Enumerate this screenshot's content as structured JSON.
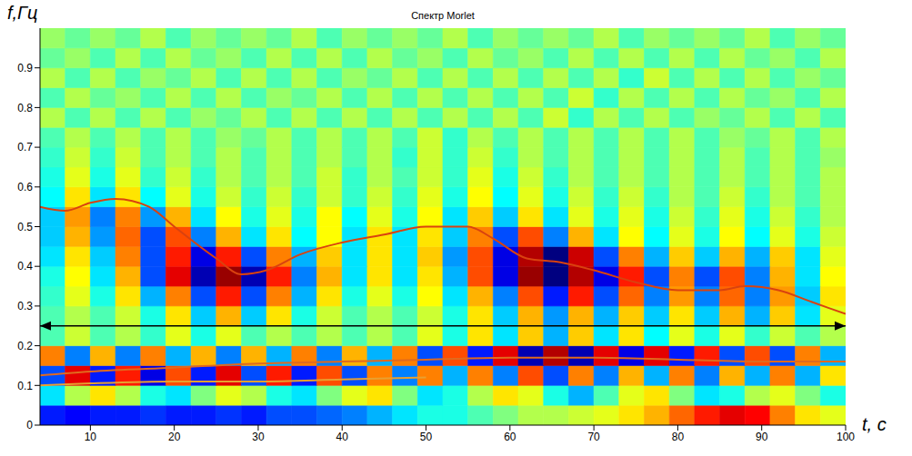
{
  "chart_data": {
    "type": "heatmap",
    "title": "Спектр Morlet",
    "x_label": "t, с",
    "y_label": "f,Гц",
    "xlim": [
      4,
      100
    ],
    "xticks": [
      10,
      20,
      30,
      40,
      50,
      60,
      70,
      80,
      90,
      100
    ],
    "ylim": [
      0,
      1
    ],
    "yticks": [
      0,
      0.1,
      0.2,
      0.3,
      0.4,
      0.5,
      0.6,
      0.7,
      0.8,
      0.9
    ],
    "grid": false,
    "heatmap": {
      "x": [
        5.5,
        8.5,
        11.5,
        14.5,
        17.5,
        20.5,
        23.5,
        26.5,
        29.5,
        32.5,
        35.5,
        38.5,
        41.5,
        44.5,
        47.5,
        50.5,
        53.5,
        56.5,
        59.5,
        62.5,
        65.5,
        68.5,
        71.5,
        74.5,
        77.5,
        80.5,
        83.5,
        86.5,
        89.5,
        92.5,
        95.5,
        98.5
      ],
      "y": [
        0.025,
        0.075,
        0.125,
        0.175,
        0.225,
        0.275,
        0.325,
        0.375,
        0.425,
        0.475,
        0.525,
        0.575,
        0.625,
        0.675,
        0.725,
        0.775,
        0.825,
        0.875,
        0.925,
        0.975
      ],
      "color_range": [
        -1,
        1
      ],
      "values": [
        [
          -0.7,
          -0.75,
          -0.7,
          -0.7,
          -0.65,
          -0.7,
          -0.7,
          -0.65,
          -0.7,
          -0.6,
          -0.6,
          -0.55,
          -0.5,
          -0.4,
          -0.3,
          -0.2,
          -0.2,
          -0.1,
          0,
          0.1,
          0.1,
          0.15,
          0.2,
          0.3,
          0.4,
          0.55,
          0.7,
          0.8,
          0.75,
          0.5,
          0.3,
          0.2
        ],
        [
          -0.3,
          0.1,
          0.3,
          0.1,
          -0.2,
          -0.3,
          0,
          0.2,
          0.1,
          -0.2,
          -0.3,
          0,
          0.2,
          0.3,
          0,
          -0.3,
          -0.2,
          0.1,
          0.3,
          0.2,
          -0.2,
          -0.4,
          -0.1,
          0.2,
          0.3,
          0,
          -0.3,
          -0.2,
          0.1,
          0.2,
          0,
          -0.2
        ],
        [
          -0.6,
          0.8,
          -0.7,
          0.7,
          -0.8,
          0.6,
          -0.7,
          0.8,
          -0.6,
          0.7,
          -0.7,
          0.6,
          -0.6,
          0.5,
          -0.5,
          0.5,
          -0.4,
          0.5,
          -0.5,
          0.6,
          -0.6,
          0.5,
          -0.5,
          0.4,
          -0.4,
          0.5,
          -0.5,
          0.4,
          -0.4,
          0.5,
          -0.4,
          0.3
        ],
        [
          0.5,
          -0.5,
          0.4,
          -0.5,
          0.5,
          -0.4,
          0.4,
          -0.5,
          0.4,
          -0.4,
          0.5,
          -0.5,
          0.4,
          -0.4,
          0.5,
          -0.6,
          0.6,
          -0.7,
          0.8,
          -0.9,
          0.9,
          -0.9,
          0.8,
          -0.8,
          0.8,
          -0.7,
          0.7,
          -0.6,
          0.6,
          -0.6,
          0.5,
          -0.4
        ],
        [
          -0.1,
          0.15,
          -0.1,
          0.1,
          -0.15,
          0.2,
          -0.2,
          0.2,
          -0.1,
          0.1,
          -0.1,
          0.1,
          -0.1,
          0.1,
          -0.1,
          0.2,
          -0.2,
          0.3,
          -0.3,
          0.35,
          -0.4,
          0.35,
          -0.3,
          0.3,
          -0.25,
          0.2,
          -0.2,
          0.2,
          -0.15,
          0.15,
          -0.1,
          0.1
        ],
        [
          -0.1,
          0.1,
          -0.1,
          0.15,
          -0.2,
          0.3,
          -0.35,
          0.4,
          -0.35,
          0.3,
          -0.2,
          0.15,
          -0.1,
          0.1,
          -0.1,
          0.15,
          -0.2,
          0.3,
          -0.35,
          0.4,
          -0.45,
          0.4,
          -0.4,
          0.35,
          -0.35,
          0.3,
          -0.35,
          0.4,
          -0.4,
          0.35,
          -0.3,
          0.2
        ],
        [
          -0.15,
          0.2,
          -0.2,
          0.3,
          -0.4,
          0.5,
          -0.6,
          0.7,
          -0.6,
          0.5,
          -0.4,
          0.3,
          -0.2,
          0.2,
          -0.2,
          0.25,
          -0.3,
          0.4,
          -0.5,
          0.6,
          -0.7,
          0.7,
          -0.6,
          0.55,
          -0.5,
          0.45,
          -0.5,
          0.55,
          -0.5,
          0.45,
          -0.35,
          0.3
        ],
        [
          -0.2,
          0.25,
          -0.3,
          0.4,
          -0.6,
          0.8,
          -0.9,
          0.95,
          -0.9,
          0.7,
          -0.5,
          0.4,
          -0.3,
          0.3,
          -0.3,
          0.3,
          -0.4,
          0.6,
          -0.8,
          0.95,
          -1,
          0.9,
          -0.8,
          0.7,
          -0.6,
          0.5,
          -0.6,
          0.6,
          -0.5,
          0.4,
          -0.3,
          0.25
        ],
        [
          -0.3,
          0.3,
          -0.35,
          0.5,
          -0.6,
          0.7,
          -0.8,
          0.7,
          -0.6,
          0.5,
          -0.4,
          0.35,
          -0.3,
          0.3,
          -0.3,
          0.35,
          -0.45,
          0.6,
          -0.8,
          0.9,
          -1,
          0.85,
          -0.6,
          0.5,
          -0.4,
          0.35,
          -0.35,
          0.4,
          -0.4,
          0.35,
          -0.3,
          0.2
        ],
        [
          -0.35,
          0.4,
          -0.45,
          0.55,
          -0.6,
          0.6,
          -0.5,
          0.4,
          -0.3,
          0.3,
          -0.25,
          0.25,
          -0.3,
          0.3,
          -0.3,
          0.3,
          -0.35,
          0.5,
          -0.6,
          0.6,
          -0.5,
          0.4,
          -0.3,
          0.25,
          -0.25,
          0.2,
          -0.2,
          0.25,
          -0.25,
          0.2,
          -0.2,
          0.15
        ],
        [
          -0.35,
          0.45,
          -0.5,
          0.5,
          -0.45,
          0.4,
          -0.3,
          0.25,
          -0.2,
          0.2,
          -0.2,
          0.25,
          -0.25,
          0.2,
          -0.2,
          0.25,
          -0.3,
          0.35,
          -0.35,
          0.3,
          -0.3,
          0.2,
          -0.2,
          0.2,
          -0.2,
          0.15,
          -0.15,
          0.2,
          -0.2,
          0.15,
          -0.15,
          0.1
        ],
        [
          -0.25,
          0.3,
          -0.3,
          0.3,
          -0.25,
          0.2,
          -0.2,
          0.15,
          -0.15,
          0.15,
          -0.15,
          0.15,
          -0.15,
          0.15,
          -0.15,
          0.2,
          -0.2,
          0.25,
          -0.25,
          0.2,
          -0.2,
          0.15,
          -0.15,
          0.15,
          -0.15,
          0.1,
          -0.1,
          0.15,
          -0.15,
          0.1,
          -0.1,
          0.1
        ],
        [
          -0.2,
          0.2,
          -0.2,
          0.2,
          -0.15,
          0.15,
          -0.15,
          0.1,
          -0.1,
          0.1,
          -0.1,
          0.15,
          -0.15,
          0.1,
          -0.1,
          0.15,
          -0.15,
          0.2,
          -0.2,
          0.15,
          -0.15,
          0.1,
          -0.1,
          0.1,
          -0.1,
          0.1,
          -0.1,
          0.1,
          -0.1,
          0.1,
          -0.1,
          0.1
        ],
        [
          -0.15,
          0.15,
          -0.15,
          0.15,
          -0.1,
          0.1,
          -0.1,
          0.1,
          -0.1,
          0.1,
          -0.1,
          0.1,
          -0.1,
          0.1,
          -0.15,
          0.15,
          -0.15,
          0.15,
          -0.15,
          0.1,
          -0.1,
          0.1,
          -0.1,
          0.1,
          -0.1,
          0.1,
          -0.1,
          0.1,
          -0.1,
          0.1,
          -0.1,
          0.05
        ],
        [
          -0.1,
          0.1,
          -0.1,
          0.1,
          -0.1,
          0.1,
          -0.1,
          0.05,
          -0.05,
          0.1,
          -0.1,
          0.1,
          -0.1,
          0.1,
          -0.1,
          0.15,
          -0.15,
          0.1,
          -0.1,
          0.1,
          -0.1,
          0.1,
          -0.1,
          0.1,
          -0.1,
          0.1,
          -0.1,
          0.05,
          -0.05,
          0.1,
          -0.1,
          0.1
        ],
        [
          0.1,
          -0.1,
          0.1,
          -0.1,
          0.1,
          -0.1,
          0.05,
          -0.05,
          0.1,
          -0.1,
          0.1,
          -0.1,
          0.1,
          -0.1,
          0.1,
          -0.1,
          0.1,
          -0.1,
          0.1,
          -0.1,
          0.15,
          -0.15,
          0.1,
          -0.1,
          0.1,
          -0.1,
          0.05,
          -0.05,
          0.1,
          -0.1,
          0.1,
          -0.1
        ],
        [
          -0.1,
          0.1,
          -0.05,
          0.05,
          -0.1,
          0.1,
          -0.1,
          0.1,
          -0.1,
          0.05,
          -0.05,
          0.1,
          -0.1,
          0.1,
          -0.1,
          0.1,
          -0.1,
          0.1,
          -0.1,
          0.1,
          -0.1,
          0.15,
          -0.15,
          0.1,
          -0.1,
          0.1,
          -0.1,
          0.1,
          -0.05,
          0.05,
          -0.1,
          0.1
        ],
        [
          0.1,
          -0.1,
          0.1,
          -0.1,
          0.05,
          -0.05,
          0.1,
          -0.1,
          0.1,
          -0.1,
          0.1,
          -0.1,
          0.05,
          -0.05,
          0.1,
          -0.1,
          0.1,
          -0.1,
          0.1,
          -0.1,
          0.1,
          -0.1,
          0.1,
          -0.15,
          0.15,
          -0.1,
          0.1,
          -0.1,
          0.1,
          -0.1,
          0.05,
          -0.05
        ],
        [
          -0.05,
          0.05,
          -0.1,
          0.1,
          -0.1,
          0.1,
          -0.05,
          0.05,
          -0.1,
          0.1,
          -0.1,
          0.1,
          -0.1,
          0.1,
          -0.05,
          0.05,
          -0.1,
          0.1,
          -0.05,
          0.05,
          -0.1,
          0.1,
          -0.1,
          0.1,
          -0.1,
          0.1,
          -0.1,
          0.1,
          -0.05,
          0.05,
          -0.1,
          0.1
        ],
        [
          0.05,
          -0.05,
          0.05,
          -0.05,
          0.1,
          -0.1,
          0.05,
          -0.05,
          0.05,
          -0.05,
          0.1,
          -0.1,
          0.05,
          -0.05,
          0.05,
          -0.05,
          0.1,
          -0.1,
          0.05,
          -0.05,
          0.05,
          -0.05,
          0.1,
          -0.1,
          0.05,
          -0.05,
          0.05,
          -0.05,
          0.1,
          -0.1,
          0.05,
          -0.05
        ]
      ]
    },
    "series": [
      {
        "type": "line",
        "color": "#d9420f",
        "x": [
          4,
          7,
          10,
          13,
          17,
          20,
          25,
          28,
          31,
          35,
          40,
          45,
          50,
          55,
          58,
          62,
          66,
          70,
          75,
          80,
          85,
          88,
          92,
          96,
          100
        ],
        "values": [
          0.55,
          0.54,
          0.56,
          0.57,
          0.55,
          0.5,
          0.42,
          0.38,
          0.39,
          0.43,
          0.46,
          0.48,
          0.5,
          0.5,
          0.47,
          0.42,
          0.41,
          0.39,
          0.36,
          0.34,
          0.34,
          0.35,
          0.34,
          0.31,
          0.28
        ]
      },
      {
        "type": "line",
        "color": "#e06a1e",
        "x": [
          4,
          10,
          20,
          30,
          40,
          50,
          60,
          70,
          80,
          90,
          100
        ],
        "values": [
          0.125,
          0.135,
          0.145,
          0.155,
          0.16,
          0.165,
          0.17,
          0.17,
          0.165,
          0.16,
          0.16
        ]
      },
      {
        "type": "line",
        "color": "#e8a030",
        "x": [
          4,
          10,
          20,
          30,
          40,
          50
        ],
        "values": [
          0.1,
          0.105,
          0.11,
          0.11,
          0.115,
          0.12
        ]
      }
    ],
    "annotations": [
      {
        "type": "arrow",
        "x": [
          4,
          100
        ],
        "y": 0.25,
        "color": "#000000"
      }
    ]
  }
}
